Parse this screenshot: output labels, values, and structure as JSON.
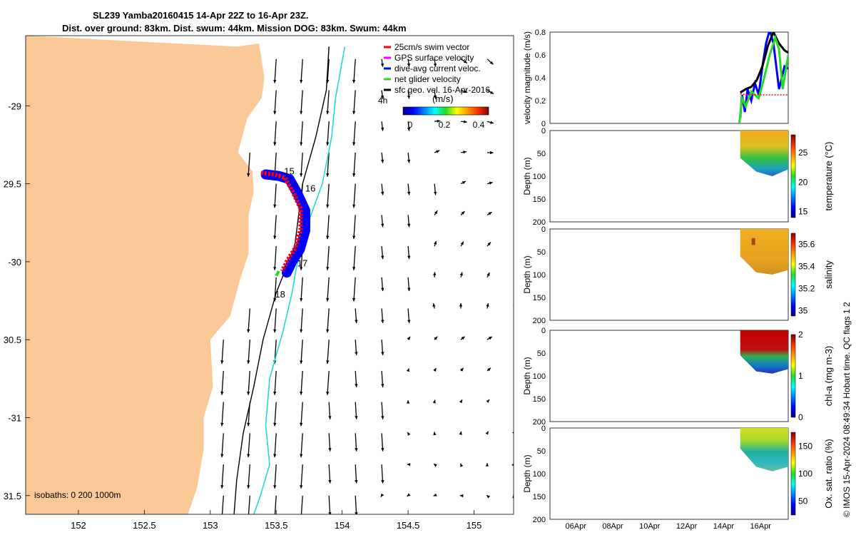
{
  "title": {
    "line1": "SL239 Yamba20160415 14-Apr 22Z to 16-Apr 23Z.",
    "line2": "Dist. over ground: 83km. Dist. swum: 44km. Mission DOG: 83km. Swum: 44km"
  },
  "credit": "© IMOS 15-Apr-2024 08:49:34 Hobart time. QC flags 1  2",
  "colors": {
    "land": "#FBC898",
    "arrow": "#000000",
    "track_blue": "#0000FF",
    "track_red": "#FF0000",
    "track_green": "#22DD22",
    "isobath_200": "#000000",
    "isobath_1000": "#22D8D8"
  },
  "chart_data": [
    {
      "type": "map",
      "name": "glider-track-map",
      "xlim": [
        151.6,
        155.3
      ],
      "ylim": [
        -31.62,
        -28.55
      ],
      "xticks": [
        152,
        152.5,
        153,
        153.5,
        154,
        154.5,
        155
      ],
      "xtick_labels": [
        "152",
        "152.5",
        "153",
        "153.5",
        "154",
        "154.5",
        "155"
      ],
      "yticks": [
        -29,
        -29.5,
        -30,
        -30.5,
        -31,
        -31.5
      ],
      "ytick_labels": [
        "-29",
        "29.5",
        "-30",
        "30.5",
        "-31",
        "31.5"
      ],
      "legend": [
        {
          "label": "25cm/s swim vector",
          "color": "#FF0000"
        },
        {
          "label": "GPS surface velocity",
          "color": "#FF00FF"
        },
        {
          "label": "dive-avg current veloc.",
          "color": "#0000FF"
        },
        {
          "label": "net glider velocity",
          "color": "#22DD22"
        },
        {
          "label": "sfc geo. vel. 16-Apr-2016",
          "color": "#000000"
        }
      ],
      "time_label": "4h",
      "colorbar": {
        "title": "(m/s)",
        "ticks": [
          "0",
          "0.2",
          "0.4"
        ],
        "range": [
          0,
          0.5
        ]
      },
      "isobath_label": "isobaths: 0   200  1000m",
      "day_labels": [
        {
          "text": "15",
          "lon": 153.56,
          "lat": -29.44
        },
        {
          "text": "16",
          "lon": 153.72,
          "lat": -29.55
        },
        {
          "text": "17",
          "lon": 153.66,
          "lat": -30.03
        },
        {
          "text": "18",
          "lon": 153.49,
          "lat": -30.23
        }
      ],
      "track": [
        [
          153.42,
          -29.44
        ],
        [
          153.52,
          -29.45
        ],
        [
          153.6,
          -29.47
        ],
        [
          153.66,
          -29.56
        ],
        [
          153.72,
          -29.67
        ],
        [
          153.72,
          -29.8
        ],
        [
          153.68,
          -29.92
        ],
        [
          153.62,
          -30.0
        ],
        [
          153.58,
          -30.07
        ]
      ],
      "coast": [
        [
          153.2,
          -28.62
        ],
        [
          153.37,
          -28.6
        ],
        [
          153.41,
          -28.82
        ],
        [
          153.39,
          -28.95
        ],
        [
          153.28,
          -29.08
        ],
        [
          153.21,
          -29.3
        ],
        [
          153.32,
          -29.42
        ],
        [
          153.33,
          -29.55
        ],
        [
          153.29,
          -29.7
        ],
        [
          153.29,
          -29.95
        ],
        [
          153.23,
          -30.1
        ],
        [
          153.15,
          -30.35
        ],
        [
          153.0,
          -30.5
        ],
        [
          153.02,
          -30.8
        ],
        [
          152.95,
          -31.0
        ],
        [
          152.95,
          -31.2
        ],
        [
          152.9,
          -31.45
        ],
        [
          152.83,
          -31.62
        ]
      ],
      "isobath_200": [
        [
          153.9,
          -28.62
        ],
        [
          153.88,
          -28.9
        ],
        [
          153.8,
          -29.2
        ],
        [
          153.7,
          -29.5
        ],
        [
          153.64,
          -29.9
        ],
        [
          153.5,
          -30.2
        ],
        [
          153.4,
          -30.5
        ],
        [
          153.33,
          -30.8
        ],
        [
          153.25,
          -31.1
        ],
        [
          153.2,
          -31.4
        ],
        [
          153.18,
          -31.62
        ]
      ],
      "isobath_1000": [
        [
          154.02,
          -28.62
        ],
        [
          153.95,
          -28.95
        ],
        [
          153.92,
          -29.2
        ],
        [
          153.85,
          -29.5
        ],
        [
          153.72,
          -29.8
        ],
        [
          153.65,
          -30.05
        ],
        [
          153.62,
          -30.2
        ],
        [
          153.55,
          -30.45
        ],
        [
          153.45,
          -30.75
        ],
        [
          153.42,
          -31.05
        ],
        [
          153.45,
          -31.3
        ],
        [
          153.38,
          -31.5
        ],
        [
          153.33,
          -31.62
        ]
      ]
    },
    {
      "type": "line",
      "name": "velocity-magnitude",
      "ylabel": "velocity magnitude (m/s)",
      "ylim": [
        0,
        0.8
      ],
      "yticks": [
        "0",
        "0.2",
        "0.4",
        "0.6",
        "0.8"
      ],
      "xlim_days": [
        4.6,
        17.5
      ],
      "series": [
        {
          "name": "dive-avg current",
          "color": "#0000FF",
          "x": [
            14.9,
            15.0,
            15.15,
            15.3,
            15.5,
            15.7,
            15.9,
            16.1,
            16.3,
            16.5,
            16.7,
            17.0,
            17.3,
            17.5
          ],
          "y": [
            0.05,
            0.25,
            0.1,
            0.3,
            0.2,
            0.35,
            0.25,
            0.5,
            0.7,
            0.82,
            0.7,
            0.3,
            0.5,
            0.48
          ]
        },
        {
          "name": "sfc geo. vel.",
          "color": "#000000",
          "x": [
            14.9,
            15.2,
            15.5,
            15.8,
            16.1,
            16.4,
            16.7,
            17.0,
            17.3,
            17.5
          ],
          "y": [
            0.27,
            0.3,
            0.32,
            0.38,
            0.5,
            0.68,
            0.8,
            0.7,
            0.64,
            0.62
          ]
        },
        {
          "name": "net glider velocity",
          "color": "#22DD22",
          "x": [
            14.85,
            15.0,
            15.2,
            15.5,
            15.9,
            16.2,
            16.5,
            16.8,
            17.0,
            17.2,
            17.5
          ],
          "y": [
            0.0,
            0.22,
            0.15,
            0.28,
            0.22,
            0.4,
            0.6,
            0.75,
            0.65,
            0.3,
            0.6
          ]
        },
        {
          "name": "25cm/s swim vector",
          "color": "#FF0000",
          "x": [
            14.9,
            15.3,
            15.7,
            16.1,
            16.5,
            16.9,
            17.3,
            17.5
          ],
          "y": [
            0.26,
            0.25,
            0.25,
            0.25,
            0.25,
            0.25,
            0.25,
            0.25
          ]
        }
      ]
    },
    {
      "type": "heatmap",
      "name": "temperature-section",
      "ylabel": "Depth (m)",
      "ylim": [
        0,
        200
      ],
      "yticks": [
        "0",
        "50",
        "100",
        "150",
        "200"
      ],
      "colorbar_label": "temperature (°C)",
      "colorbar_ticks": [
        "15",
        "20",
        "25"
      ],
      "clim": [
        14,
        28
      ],
      "data_x_days": [
        14.9,
        17.5
      ],
      "bottom_depth_m": [
        60,
        90,
        100,
        85
      ]
    },
    {
      "type": "heatmap",
      "name": "salinity-section",
      "ylabel": "Depth (m)",
      "ylim": [
        0,
        200
      ],
      "yticks": [
        "0",
        "50",
        "100",
        "150",
        "200"
      ],
      "colorbar_label": "salinity",
      "colorbar_ticks": [
        "35",
        "35.2",
        "35.4",
        "35.6"
      ],
      "clim": [
        34.95,
        35.7
      ],
      "data_x_days": [
        14.9,
        17.5
      ],
      "bottom_depth_m": [
        60,
        95,
        100,
        90
      ]
    },
    {
      "type": "heatmap",
      "name": "chla-section",
      "ylabel": "Depth (m)",
      "ylim": [
        0,
        200
      ],
      "yticks": [
        "0",
        "50",
        "100",
        "150",
        "200"
      ],
      "colorbar_label": "chl-a (mg m-3)",
      "colorbar_ticks": [
        "0",
        "1",
        "2"
      ],
      "clim": [
        0,
        2
      ],
      "data_x_days": [
        14.9,
        17.5
      ],
      "bottom_depth_m": [
        55,
        90,
        95,
        85
      ]
    },
    {
      "type": "heatmap",
      "name": "oxygen-section",
      "ylabel": "Depth (m)",
      "ylim": [
        0,
        200
      ],
      "yticks": [
        "0",
        "50",
        "100",
        "150",
        "200"
      ],
      "colorbar_label": "Ox. sat. ratio (%)",
      "colorbar_ticks": [
        "50",
        "100",
        "150"
      ],
      "clim": [
        25,
        175
      ],
      "data_x_days": [
        14.9,
        17.5
      ],
      "bottom_depth_m": [
        45,
        85,
        95,
        85
      ],
      "xtick_labels": [
        "06Apr",
        "08Apr",
        "10Apr",
        "12Apr",
        "14Apr",
        "16Apr"
      ],
      "xtick_days": [
        6,
        8,
        10,
        12,
        14,
        16
      ]
    }
  ]
}
